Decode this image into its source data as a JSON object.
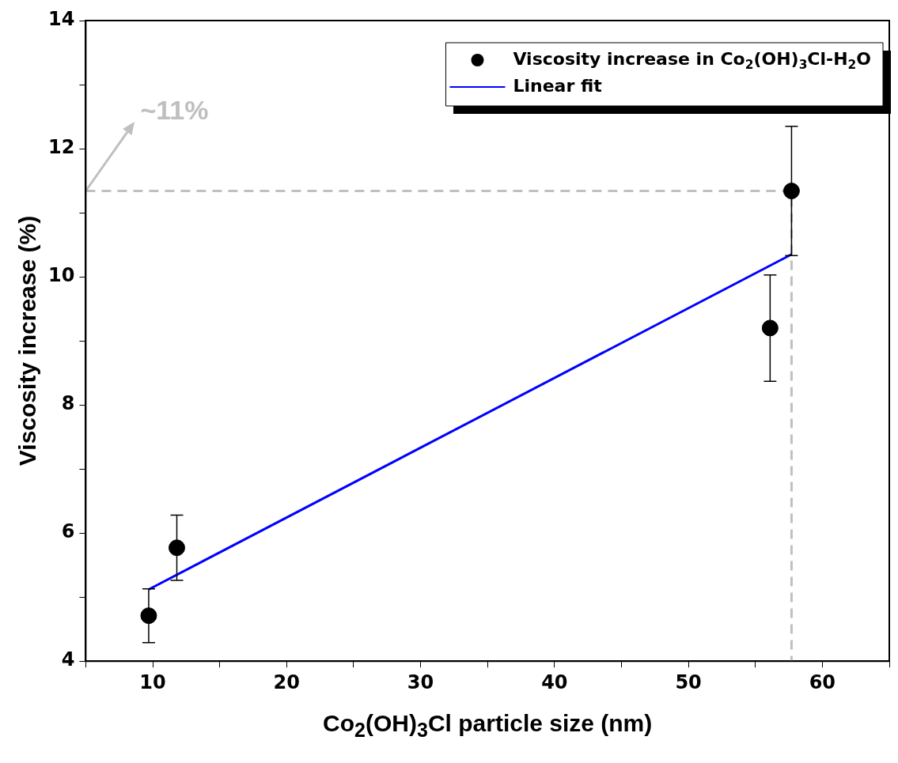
{
  "chart_data": {
    "type": "scatter",
    "xlabel": "Co$_{2}$(OH)$_{3}$Cl particle size (nm)",
    "ylabel": "Viscosity increase (%)",
    "xlim": [
      5,
      65
    ],
    "xticks": [
      {
        "value": 5,
        "label": null
      },
      10,
      {
        "value": 15,
        "label": null
      },
      20,
      {
        "value": 25,
        "label": null
      },
      30,
      {
        "value": 35,
        "label": null
      },
      40,
      {
        "value": 45,
        "label": null
      },
      50,
      {
        "value": 55,
        "label": null
      },
      60,
      {
        "value": 65,
        "label": null
      }
    ],
    "ylim": [
      4,
      14
    ],
    "yticks": [
      4,
      {
        "value": 5,
        "label": null
      },
      6,
      {
        "value": 7,
        "label": null
      },
      8,
      {
        "value": 9,
        "label": null
      },
      10,
      {
        "value": 11,
        "label": null
      },
      12,
      {
        "value": 13,
        "label": null
      },
      14
    ],
    "grid": false,
    "legend": "top right",
    "series": [
      {
        "name": "Viscosity increase in Co$_{2}$(OH)$_{3}$Cl-H$_{2}$O",
        "type": "scatter",
        "marker": "circle",
        "color": "#000000",
        "x": [
          9.7,
          11.8,
          56.1,
          57.7
        ],
        "values": [
          4.71,
          5.77,
          9.2,
          11.34
        ],
        "errors": [
          0.42,
          0.51,
          0.83,
          1.01
        ]
      },
      {
        "name": "Linear fit",
        "type": "line",
        "color": "#0000ff",
        "x": [
          9.7,
          57.7
        ],
        "values": [
          5.12,
          10.35
        ]
      },
      {
        "type": "line",
        "color": "#c0c0c0",
        "line_style": "dashed",
        "x": [
          5,
          57.7,
          57.7
        ],
        "values": [
          11.34,
          11.34,
          4
        ]
      }
    ],
    "annotations": [
      {
        "text": "~11%",
        "x": 5,
        "y": 11.34
      }
    ]
  }
}
